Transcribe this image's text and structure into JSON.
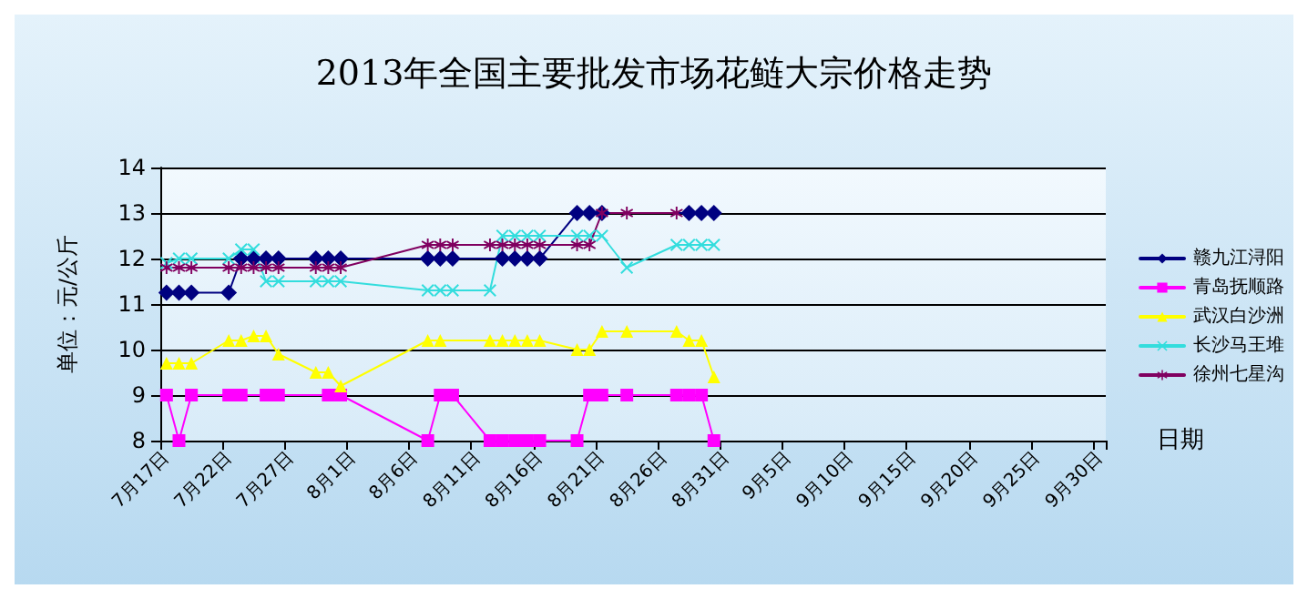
{
  "chart_data": {
    "type": "line",
    "title": "2013年全国主要批发市场花鲢大宗价格走势",
    "xlabel": "日期",
    "ylabel": "单位：元/公斤",
    "categories": [
      "7月17日",
      null,
      null,
      null,
      null,
      "7月22日",
      null,
      null,
      null,
      null,
      "7月27日",
      null,
      null,
      null,
      null,
      "8月1日",
      null,
      null,
      null,
      null,
      "8月6日",
      null,
      null,
      null,
      null,
      "8月11日",
      null,
      null,
      null,
      null,
      "8月16日",
      null,
      null,
      null,
      null,
      "8月21日",
      null,
      null,
      null,
      null,
      "8月26日",
      null,
      null,
      null,
      null,
      "8月31日",
      null,
      null,
      null,
      null,
      "9月5日",
      null,
      null,
      null,
      null,
      "9月10日",
      null,
      null,
      null,
      null,
      "9月15日",
      null,
      null,
      null,
      null,
      "9月20日",
      null,
      null,
      null,
      null,
      "9月25日",
      null,
      null,
      null,
      null,
      "9月30日"
    ],
    "series": [
      {
        "name": "赣九江浔阳",
        "color": "#000080",
        "marker": "diamond",
        "values": [
          11.25,
          11.25,
          11.25,
          null,
          null,
          11.25,
          12,
          12,
          12,
          12,
          null,
          null,
          12,
          12,
          12,
          null,
          null,
          null,
          null,
          null,
          null,
          12,
          12,
          12,
          null,
          null,
          null,
          12,
          12,
          12,
          12,
          null,
          null,
          13,
          13,
          13,
          null,
          null,
          null,
          null,
          null,
          null,
          13,
          13,
          13,
          null,
          null,
          null,
          null,
          null,
          null,
          null,
          null,
          null,
          null,
          null,
          null,
          null,
          null,
          null,
          null,
          null,
          null,
          null,
          null,
          null,
          null,
          null,
          null,
          null,
          null,
          null,
          null,
          null,
          null,
          null
        ]
      },
      {
        "name": "青岛抚顺路",
        "color": "#ff00ff",
        "marker": "square",
        "values": [
          9,
          8,
          9,
          null,
          null,
          9,
          9,
          null,
          9,
          9,
          null,
          null,
          null,
          9,
          9,
          null,
          null,
          null,
          null,
          null,
          null,
          8,
          9,
          9,
          null,
          null,
          8,
          8,
          8,
          8,
          8,
          null,
          null,
          8,
          9,
          9,
          null,
          9,
          null,
          null,
          null,
          9,
          9,
          9,
          8,
          null,
          null,
          null,
          null,
          null,
          null,
          null,
          null,
          null,
          null,
          null,
          null,
          null,
          null,
          null,
          null,
          null,
          null,
          null,
          null,
          null,
          null,
          null,
          null,
          null,
          null,
          null,
          null,
          null,
          null,
          null
        ]
      },
      {
        "name": "武汉白沙洲",
        "color": "#ffff00",
        "marker": "triangle",
        "values": [
          9.7,
          9.7,
          9.7,
          null,
          null,
          10.2,
          10.2,
          10.3,
          10.3,
          9.9,
          null,
          null,
          9.5,
          9.5,
          9.2,
          null,
          null,
          null,
          null,
          null,
          null,
          10.2,
          10.2,
          null,
          null,
          null,
          10.2,
          10.2,
          10.2,
          10.2,
          10.2,
          null,
          null,
          10,
          10,
          10.4,
          null,
          10.4,
          null,
          null,
          null,
          10.4,
          10.2,
          10.2,
          9.4,
          null,
          null,
          null,
          null,
          null,
          null,
          null,
          null,
          null,
          null,
          null,
          null,
          null,
          null,
          null,
          null,
          null,
          null,
          null,
          null,
          null,
          null,
          null,
          null,
          null,
          null,
          null,
          null,
          null,
          null,
          null
        ]
      },
      {
        "name": "长沙马王堆",
        "color": "#33dddd",
        "marker": "cross",
        "values": [
          11.9,
          12,
          12,
          null,
          null,
          12,
          12.2,
          12.2,
          11.5,
          11.5,
          null,
          null,
          11.5,
          11.5,
          11.5,
          null,
          null,
          null,
          null,
          null,
          null,
          11.3,
          11.3,
          11.3,
          null,
          null,
          11.3,
          12.5,
          12.5,
          12.5,
          12.5,
          null,
          null,
          12.5,
          12.5,
          12.5,
          null,
          11.8,
          null,
          null,
          null,
          12.3,
          12.3,
          12.3,
          12.3,
          null,
          null,
          null,
          null,
          null,
          null,
          null,
          null,
          null,
          null,
          null,
          null,
          null,
          null,
          null,
          null,
          null,
          null,
          null,
          null,
          null,
          null,
          null,
          null,
          null,
          null,
          null,
          null,
          null,
          null,
          null
        ]
      },
      {
        "name": "徐州七星沟",
        "color": "#800060",
        "marker": "star",
        "values": [
          11.8,
          11.8,
          11.8,
          null,
          null,
          11.8,
          11.8,
          11.8,
          11.8,
          11.8,
          null,
          null,
          11.8,
          11.8,
          11.8,
          null,
          null,
          null,
          null,
          null,
          null,
          12.3,
          12.3,
          12.3,
          null,
          null,
          12.3,
          12.3,
          12.3,
          12.3,
          12.3,
          null,
          null,
          12.3,
          12.3,
          13,
          null,
          13,
          null,
          null,
          null,
          13,
          null,
          null,
          null,
          null,
          null,
          null,
          null,
          null,
          null,
          null,
          null,
          null,
          null,
          null,
          null,
          null,
          null,
          null,
          null,
          null,
          null,
          null,
          null,
          null,
          null,
          null,
          null,
          null,
          null,
          null,
          null,
          null,
          null,
          null
        ]
      }
    ],
    "ylim": [
      8,
      14
    ],
    "yticks": [
      8,
      9,
      10,
      11,
      12,
      13,
      14
    ],
    "grid": "y",
    "legend": "right",
    "line_style": "solid"
  }
}
